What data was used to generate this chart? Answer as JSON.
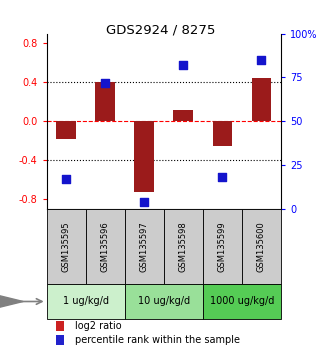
{
  "title": "GDS2924 / 8275",
  "samples": [
    "GSM135595",
    "GSM135596",
    "GSM135597",
    "GSM135598",
    "GSM135599",
    "GSM135600"
  ],
  "log2_ratio": [
    -0.18,
    0.4,
    -0.72,
    0.12,
    -0.25,
    0.44
  ],
  "percentile_rank": [
    17,
    72,
    4,
    82,
    18,
    85
  ],
  "dose_groups": [
    {
      "label": "1 ug/kg/d",
      "samples": [
        0,
        1
      ],
      "color": "#ccf0cc"
    },
    {
      "label": "10 ug/kg/d",
      "samples": [
        2,
        3
      ],
      "color": "#99e099"
    },
    {
      "label": "1000 ug/kg/d",
      "samples": [
        4,
        5
      ],
      "color": "#55cc55"
    }
  ],
  "ylim_left": [
    -0.9,
    0.9
  ],
  "ylim_right": [
    0,
    100
  ],
  "yticks_left": [
    -0.8,
    -0.4,
    0.0,
    0.4,
    0.8
  ],
  "yticks_right": [
    0,
    25,
    50,
    75,
    100
  ],
  "ytick_labels_right": [
    "0",
    "25",
    "50",
    "75",
    "100%"
  ],
  "hlines_dotted": [
    -0.4,
    0.4
  ],
  "hline_dashed": 0.0,
  "bar_color": "#9B1B1B",
  "dot_color": "#1414CC",
  "bar_width": 0.5,
  "dot_size": 28,
  "background_plot": "#ffffff",
  "sample_bg_color": "#cccccc",
  "legend_bar_color": "#cc2222",
  "legend_dot_color": "#2222cc"
}
